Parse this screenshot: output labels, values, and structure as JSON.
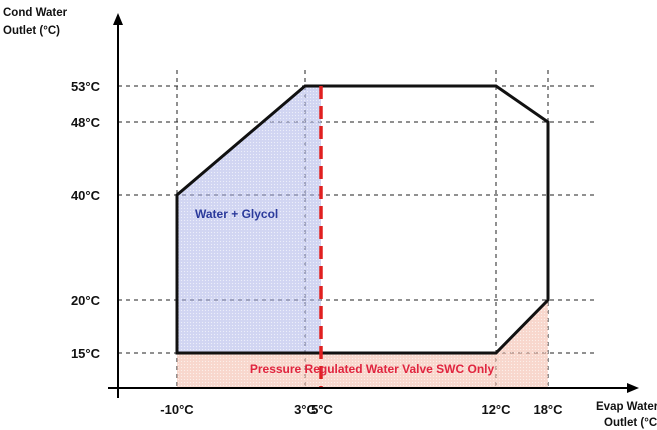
{
  "chart_data": {
    "type": "area",
    "title": "",
    "xlabel": [
      "Evap Water",
      "Outlet (°C)"
    ],
    "ylabel": [
      "Cond Water",
      "Outlet (°C)"
    ],
    "x_ticks": [
      {
        "value": -10,
        "label": "-10°C"
      },
      {
        "value": 3,
        "label": "3°C"
      },
      {
        "value": 5,
        "label": "5°C"
      },
      {
        "value": 12,
        "label": "12°C"
      },
      {
        "value": 18,
        "label": "18°C"
      }
    ],
    "y_ticks": [
      {
        "value": 15,
        "label": "15°C"
      },
      {
        "value": 20,
        "label": "20°C"
      },
      {
        "value": 40,
        "label": "40°C"
      },
      {
        "value": 48,
        "label": "48°C"
      },
      {
        "value": 53,
        "label": "53°C"
      }
    ],
    "grid": "dashed at tick values",
    "envelope": {
      "points": [
        [
          -10,
          15
        ],
        [
          -10,
          40
        ],
        [
          3,
          53
        ],
        [
          12,
          53
        ],
        [
          18,
          48
        ],
        [
          18,
          20
        ],
        [
          12,
          15
        ]
      ],
      "stroke": "#111111"
    },
    "regions": [
      {
        "label": "Water + Glycol",
        "label_color": "#2b3a9b",
        "fill": "#aab3e6",
        "points": [
          [
            -10,
            15
          ],
          [
            -10,
            40
          ],
          [
            3,
            53
          ],
          [
            5,
            53
          ],
          [
            5,
            15
          ]
        ]
      },
      {
        "label": "Pressure Regulated Water Valve SWC Only",
        "label_color": "#e0253f",
        "fill": "#f2b5a4",
        "points": [
          [
            -10,
            12.4
          ],
          [
            -10,
            15
          ],
          [
            12,
            15
          ],
          [
            18,
            20
          ],
          [
            18,
            12.4
          ]
        ]
      }
    ],
    "marker_line": {
      "x": 5,
      "color": "#e02020",
      "style": "dashed"
    }
  }
}
